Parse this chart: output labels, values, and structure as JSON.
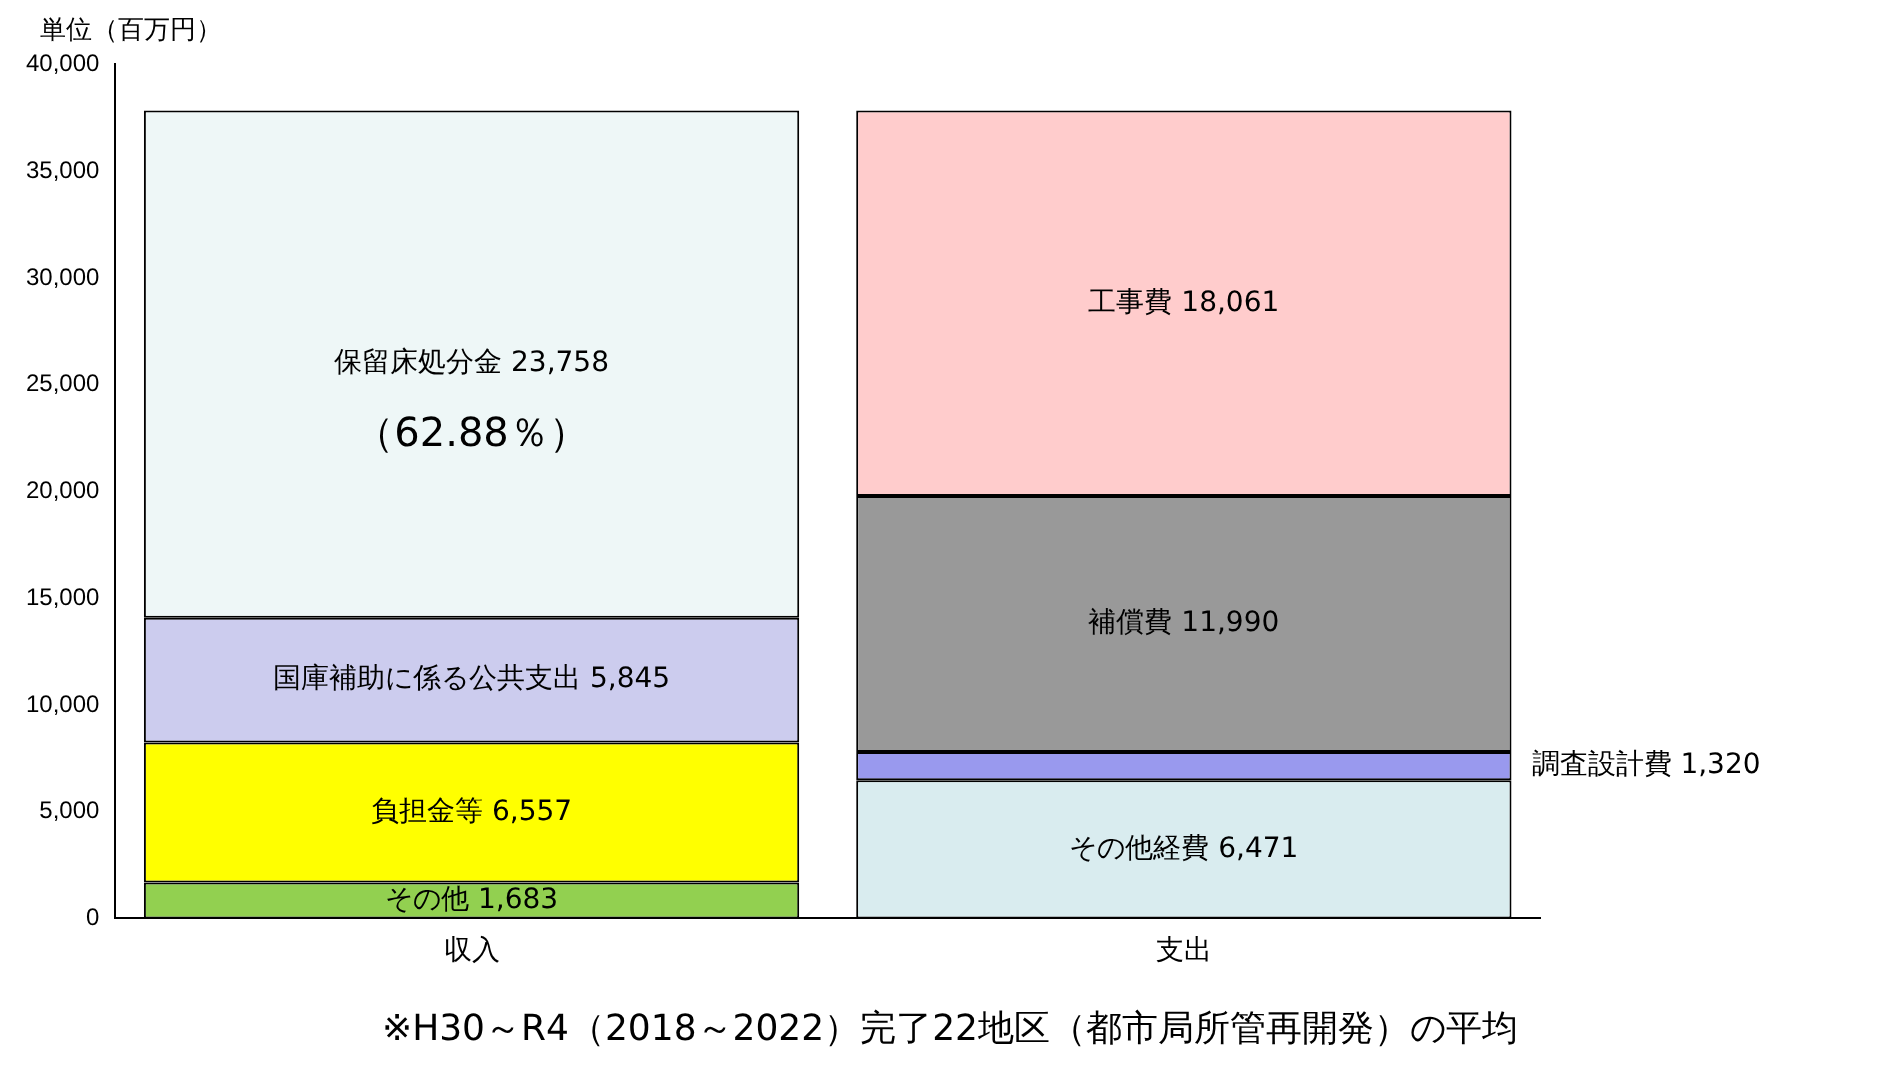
{
  "chart_data": {
    "type": "bar",
    "stacked": true,
    "ylabel": "単位（百万円）",
    "categories": [
      "収入",
      "支出"
    ],
    "series": [
      {
        "name": "その他",
        "color": "#92d050",
        "values": [
          1683,
          null
        ],
        "value_labels": [
          "1,683",
          null
        ]
      },
      {
        "name": "負担金等",
        "color": "#ffff00",
        "values": [
          6557,
          null
        ],
        "value_labels": [
          "6,557",
          null
        ]
      },
      {
        "name": "国庫補助に係る公共支出",
        "color": "#ccccee",
        "values": [
          5845,
          null
        ],
        "value_labels": [
          "5,845",
          null
        ]
      },
      {
        "name": "保留床処分金",
        "color": "#eef7f7",
        "values": [
          23758,
          null
        ],
        "value_labels": [
          "23,758",
          null
        ]
      },
      {
        "name": "その他経費",
        "color": "#d9ecef",
        "values": [
          null,
          6471
        ],
        "value_labels": [
          null,
          "6,471"
        ]
      },
      {
        "name": "調査設計費",
        "color": "#9999ee",
        "values": [
          null,
          1320
        ],
        "value_labels": [
          null,
          "1,320"
        ]
      },
      {
        "name": "補償費",
        "color": "#999999",
        "values": [
          null,
          11990
        ],
        "value_labels": [
          null,
          "11,990"
        ]
      },
      {
        "name": "工事費",
        "color": "#ffcccc",
        "values": [
          null,
          18061
        ],
        "value_labels": [
          null,
          "18,061"
        ]
      }
    ],
    "ylim": [
      0,
      40000
    ],
    "yticks": [
      0,
      {
        "value": 5000,
        "label": "5,000"
      },
      {
        "value": 10000,
        "label": "10,000"
      },
      {
        "value": 15000,
        "label": "15,000"
      },
      {
        "value": 20000,
        "label": "20,000"
      },
      {
        "value": 25000,
        "label": "25,000"
      },
      {
        "value": 30000,
        "label": "30,000"
      },
      {
        "value": 35000,
        "label": "35,000"
      },
      {
        "value": 40000,
        "label": "40,000"
      }
    ],
    "grid": false,
    "legend": false,
    "annotations": [
      "（62.88％）",
      "※H30～R4（2018～2022）完了22地区（都市局所管再開発）の平均"
    ]
  }
}
